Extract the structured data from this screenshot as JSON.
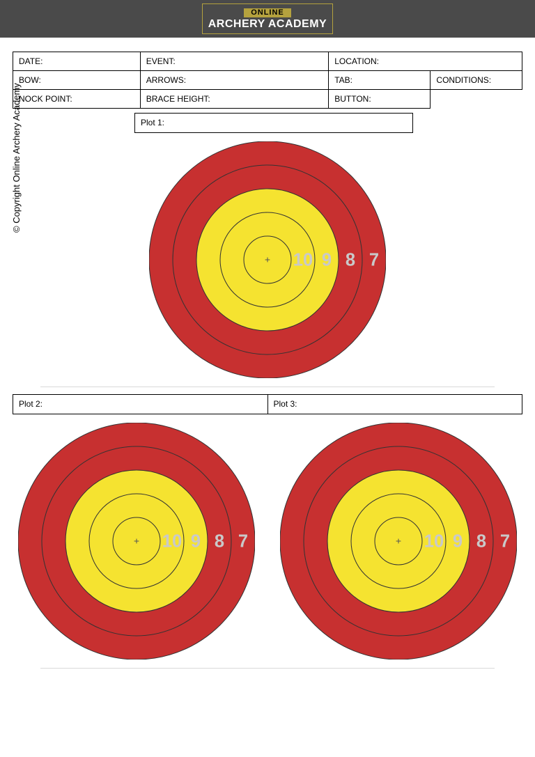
{
  "header": {
    "online": "ONLINE",
    "brand": "ARCHERY ACADEMY",
    "bar_bg": "#4a4a4a",
    "accent": "#b5a23e"
  },
  "form": {
    "row1": {
      "date": "DATE:",
      "event": "EVENT:",
      "location": "LOCATION:"
    },
    "row2": {
      "bow": "BOW:",
      "arrows": "ARROWS:",
      "tab": "TAB:",
      "conditions": "CONDITIONS:"
    },
    "row3": {
      "nock": "NOCK POINT:",
      "brace": "BRACE HEIGHT:",
      "button": "BUTTON:"
    }
  },
  "plots": {
    "p1": "Plot 1:",
    "p2": "Plot 2:",
    "p3": "Plot 3:"
  },
  "copyright": "© Copyright Online Archery Academy",
  "target": {
    "type": "archery-target",
    "diameter_large": 340,
    "diameter_small": 340,
    "rings": [
      {
        "r_pct": 100,
        "fill": "#c73030",
        "stroke": "#333333",
        "score": "7"
      },
      {
        "r_pct": 80,
        "fill": "#c73030",
        "stroke": "#333333",
        "score": "8"
      },
      {
        "r_pct": 60,
        "fill": "#f5e330",
        "stroke": "#333333",
        "score": "9"
      },
      {
        "r_pct": 40,
        "fill": "#f5e330",
        "stroke": "#333333",
        "score": "10"
      },
      {
        "r_pct": 20,
        "fill": "#f5e330",
        "stroke": "#333333",
        "score": ""
      }
    ],
    "center_cross_color": "#555555",
    "score_label_color": "#c9c9c9",
    "score_font_weight": "900",
    "score_font_family": "Arial Black, Arial, sans-serif",
    "background_color": "#ffffff"
  }
}
